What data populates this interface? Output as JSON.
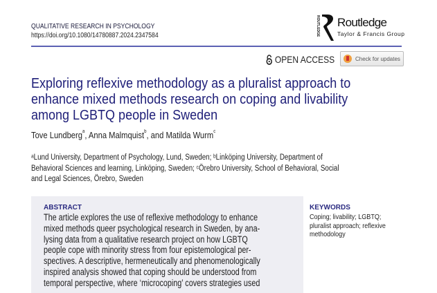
{
  "header": {
    "journal": "QUALITATIVE RESEARCH IN PSYCHOLOGY",
    "doi": "https://doi.org/10.1080/14780887.2024.2347584",
    "publisher_logo": {
      "side_text": "ROUTLEDGE",
      "name": "Routledge",
      "group": "Taylor & Francis Group"
    },
    "open_access": "OPEN ACCESS",
    "check_updates": "Check for updates",
    "rule_color": "#5b60b3"
  },
  "article": {
    "title_lines": [
      "Exploring reflexive methodology as a pluralist approach to",
      "enhance mixed methods research on coping and livability",
      "among LGBTQ people in Sweden"
    ],
    "authors": [
      {
        "name": "Tove Lundberg",
        "sup": "a",
        "sep": ", "
      },
      {
        "name": "Anna Malmquist",
        "sup": "b",
        "sep": ", and "
      },
      {
        "name": "Matilda Wurm",
        "sup": "c",
        "sep": ""
      }
    ],
    "affiliation_lines": [
      "ᵃLund University, Department of Psychology, Lund, Sweden; ᵇLinköping University, Department of",
      "Behavioral Sciences and learning, Linköping, Sweden; ᶜÖrebro University, School of Behavioral, Social",
      "and Legal Sciences, Örebro, Sweden"
    ],
    "abstract_heading": "ABSTRACT",
    "abstract_lines": [
      "The article explores the use of reflexive methodology to enhance",
      "mixed methods queer psychological research in Sweden, by ana-",
      "lysing data from a qualitative research project on how LGBTQ",
      "people cope with minority stress from four epistemological per-",
      "spectives. A descriptive, hermeneutically and phenomenologically",
      "inspired analysis showed that coping should be understood from",
      "temporal perspective, where ‘microcoping’ covers strategies used"
    ],
    "keywords_heading": "KEYWORDS",
    "keywords_lines": [
      "Coping; livability; LGBTQ;",
      "pluralist approach; reflexive",
      "methodology"
    ],
    "title_color": "#1e1e78"
  }
}
